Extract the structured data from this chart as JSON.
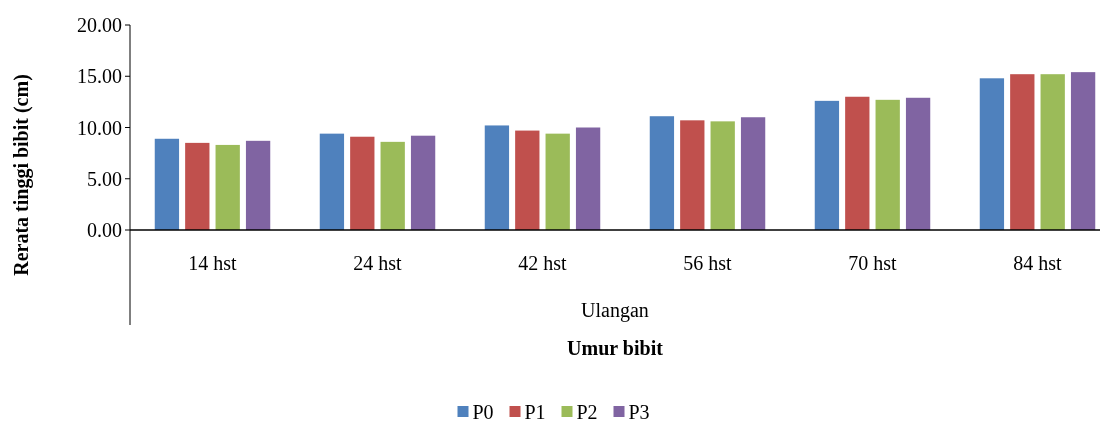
{
  "chart_data": {
    "type": "bar",
    "xlabel": "Umur bibit",
    "ylabel": "Rerata tinggi bibit (cm)",
    "annotations": [
      "Ulangan"
    ],
    "categories": [
      "14 hst",
      "24 hst",
      "42 hst",
      "56 hst",
      "70 hst",
      "84 hst"
    ],
    "series": [
      {
        "name": "P0",
        "color": "#4f81bd",
        "values": [
          8.9,
          9.4,
          10.2,
          11.1,
          12.6,
          14.8
        ]
      },
      {
        "name": "P1",
        "color": "#c0504d",
        "values": [
          8.5,
          9.1,
          9.7,
          10.7,
          13.0,
          15.2
        ]
      },
      {
        "name": "P2",
        "color": "#9bbb59",
        "values": [
          8.3,
          8.6,
          9.4,
          10.6,
          12.7,
          15.2
        ]
      },
      {
        "name": "P3",
        "color": "#8064a2",
        "values": [
          8.7,
          9.2,
          10.0,
          11.0,
          12.9,
          15.4
        ]
      }
    ],
    "ylim": [
      0,
      20
    ],
    "yticks": [
      {
        "value": 0,
        "label": "0.00"
      },
      {
        "value": 5,
        "label": "5.00"
      },
      {
        "value": 10,
        "label": "10.00"
      },
      {
        "value": 15,
        "label": "15.00"
      },
      {
        "value": 20,
        "label": "20.00"
      }
    ],
    "grid": false,
    "legend": "bottom"
  }
}
